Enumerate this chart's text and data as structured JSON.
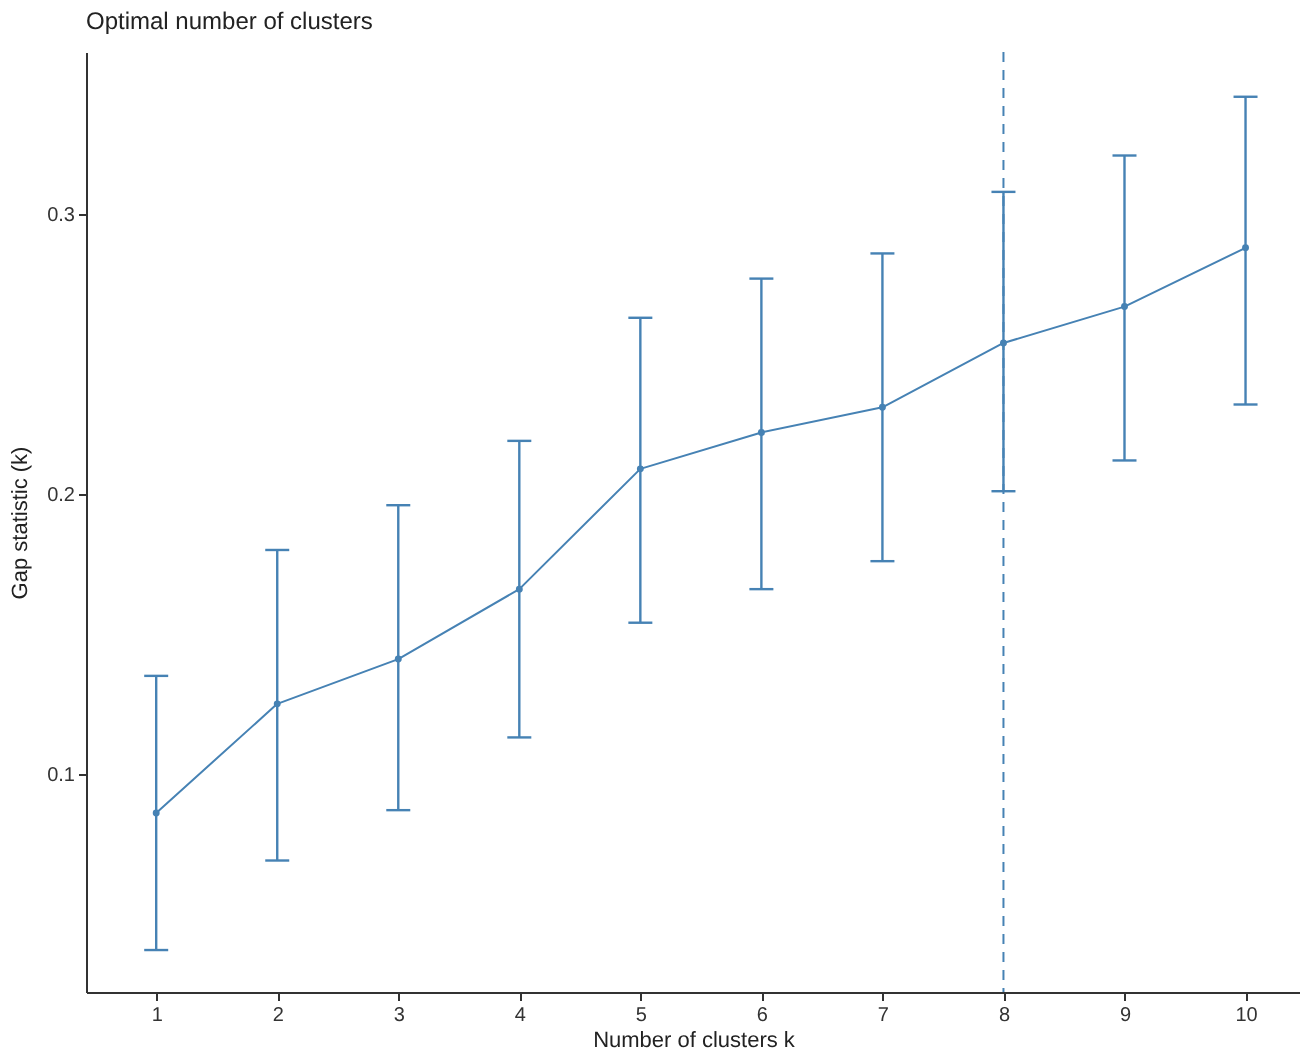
{
  "chart_data": {
    "type": "line",
    "title": "Optimal number of clusters",
    "xlabel": "Number of clusters k",
    "ylabel": "Gap statistic (k)",
    "x": [
      1,
      2,
      3,
      4,
      5,
      6,
      7,
      8,
      9,
      10
    ],
    "series": [
      {
        "color": "#4682b4",
        "values": [
          0.086,
          0.125,
          0.141,
          0.166,
          0.209,
          0.222,
          0.231,
          0.254,
          0.267,
          0.288
        ],
        "errors": [
          [
            0.037,
            0.135
          ],
          [
            0.069,
            0.18
          ],
          [
            0.087,
            0.196
          ],
          [
            0.113,
            0.219
          ],
          [
            0.154,
            0.263
          ],
          [
            0.166,
            0.277
          ],
          [
            0.176,
            0.286
          ],
          [
            0.201,
            0.308
          ],
          [
            0.212,
            0.321
          ],
          [
            0.232,
            0.342
          ]
        ]
      }
    ],
    "xlim": [
      0.42,
      10.45
    ],
    "xticks": [
      1,
      2,
      3,
      4,
      5,
      6,
      7,
      8,
      9,
      10
    ],
    "ylim": [
      0.022,
      0.358
    ],
    "yticks": [
      0.1,
      0.2,
      0.3
    ],
    "ref_lines": [
      {
        "axis": "x",
        "value": 8,
        "color": "#4682b4",
        "line_style": "dashed"
      }
    ],
    "grid": false,
    "marker": "circle",
    "line_style": "solid"
  }
}
